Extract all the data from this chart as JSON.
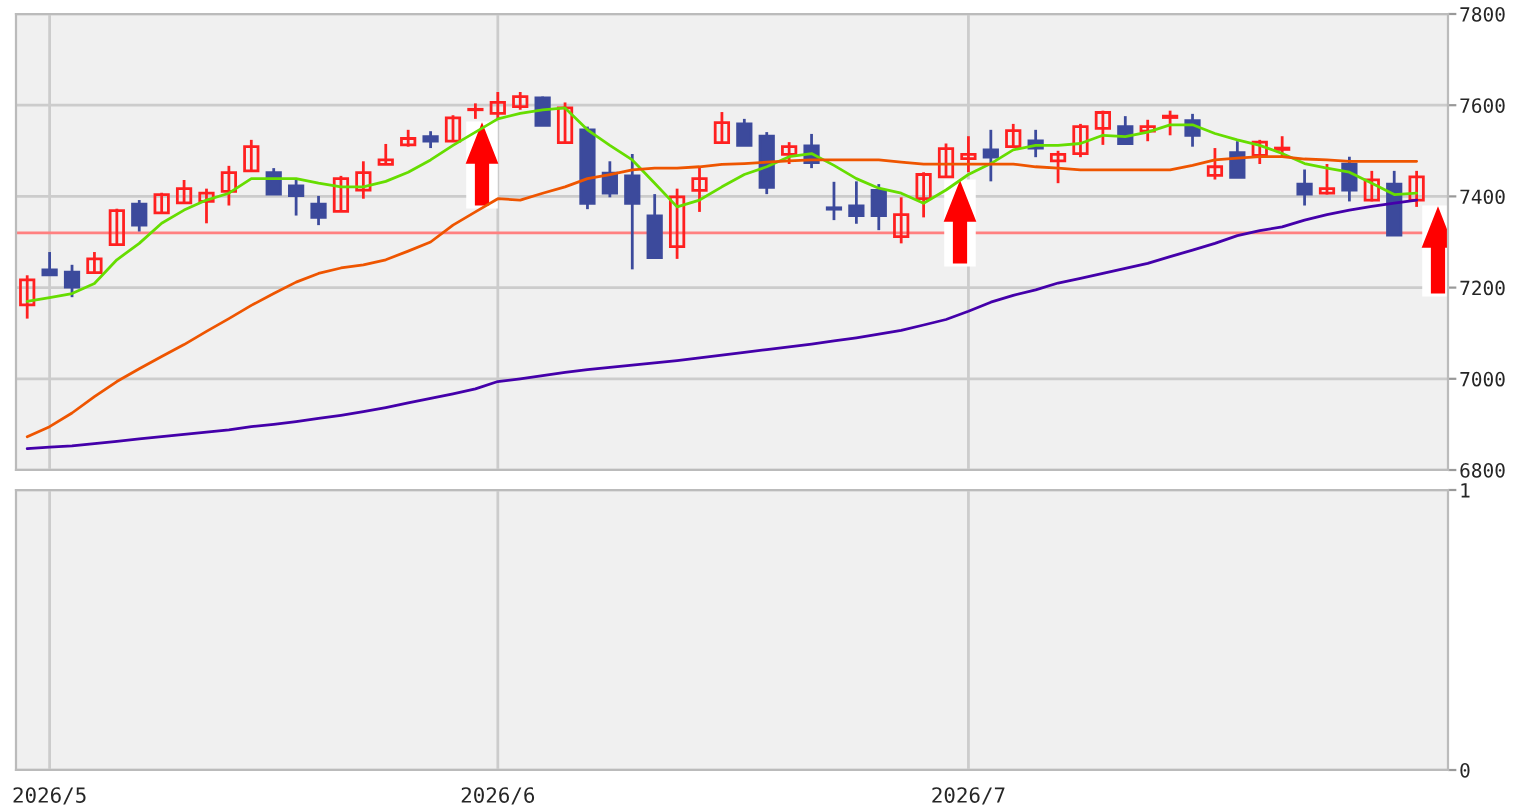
{
  "chart_data": [
    {
      "type": "candlestick",
      "categories": [
        null,
        "2026/5",
        null,
        null,
        null,
        null,
        null,
        null,
        null,
        null,
        null,
        null,
        null,
        null,
        null,
        null,
        null,
        null,
        null,
        null,
        null,
        "2026/6",
        null,
        null,
        null,
        null,
        null,
        null,
        null,
        null,
        null,
        null,
        null,
        null,
        null,
        null,
        null,
        null,
        null,
        null,
        null,
        null,
        "2026/7",
        null,
        null,
        null,
        null,
        null,
        null,
        null,
        null,
        null,
        null,
        null,
        null,
        null,
        null,
        null,
        null,
        null,
        null,
        null,
        null
      ],
      "ohlc": [
        [
          7162,
          7227,
          7132,
          7217
        ],
        [
          7239,
          7278,
          7228,
          7228
        ],
        [
          7234,
          7250,
          7179,
          7201
        ],
        [
          7233,
          7278,
          7233,
          7263
        ],
        [
          7294,
          7373,
          7294,
          7369
        ],
        [
          7383,
          7392,
          7323,
          7337
        ],
        [
          7364,
          7408,
          7364,
          7404
        ],
        [
          7386,
          7436,
          7386,
          7417
        ],
        [
          7389,
          7417,
          7341,
          7407
        ],
        [
          7411,
          7467,
          7380,
          7452
        ],
        [
          7456,
          7524,
          7456,
          7509
        ],
        [
          7452,
          7462,
          7405,
          7405
        ],
        [
          7423,
          7439,
          7358,
          7402
        ],
        [
          7383,
          7401,
          7337,
          7354
        ],
        [
          7367,
          7445,
          7367,
          7439
        ],
        [
          7414,
          7477,
          7395,
          7452
        ],
        [
          7470,
          7515,
          7470,
          7480
        ],
        [
          7513,
          7546,
          7509,
          7527
        ],
        [
          7531,
          7543,
          7506,
          7521
        ],
        [
          7521,
          7578,
          7521,
          7572
        ],
        [
          7590,
          7604,
          7570,
          7591
        ],
        [
          7582,
          7629,
          7570,
          7606
        ],
        [
          7597,
          7629,
          7590,
          7619
        ],
        [
          7616,
          7619,
          7556,
          7556
        ],
        [
          7518,
          7606,
          7518,
          7594
        ],
        [
          7546,
          7553,
          7372,
          7385
        ],
        [
          7451,
          7477,
          7398,
          7407
        ],
        [
          7445,
          7493,
          7240,
          7385
        ],
        [
          7357,
          7405,
          7266,
          7266
        ],
        [
          7290,
          7417,
          7263,
          7399
        ],
        [
          7413,
          7465,
          7366,
          7439
        ],
        [
          7518,
          7585,
          7518,
          7562
        ],
        [
          7559,
          7570,
          7512,
          7512
        ],
        [
          7532,
          7541,
          7405,
          7420
        ],
        [
          7492,
          7519,
          7471,
          7509
        ],
        [
          7511,
          7537,
          7462,
          7474
        ],
        [
          7375,
          7432,
          7348,
          7372
        ],
        [
          7379,
          7433,
          7340,
          7358
        ],
        [
          7413,
          7427,
          7326,
          7358
        ],
        [
          7312,
          7398,
          7297,
          7360
        ],
        [
          7395,
          7453,
          7354,
          7448
        ],
        [
          7443,
          7516,
          7443,
          7505
        ],
        [
          7483,
          7532,
          7453,
          7492
        ],
        [
          7502,
          7546,
          7433,
          7486
        ],
        [
          7509,
          7559,
          7509,
          7544
        ],
        [
          7522,
          7546,
          7486,
          7506
        ],
        [
          7478,
          7500,
          7429,
          7492
        ],
        [
          7494,
          7559,
          7486,
          7553
        ],
        [
          7549,
          7588,
          7513,
          7584
        ],
        [
          7553,
          7576,
          7516,
          7516
        ],
        [
          7543,
          7568,
          7521,
          7553
        ],
        [
          7573,
          7588,
          7534,
          7576
        ],
        [
          7566,
          7581,
          7509,
          7534
        ],
        [
          7446,
          7506,
          7437,
          7465
        ],
        [
          7496,
          7521,
          7442,
          7442
        ],
        [
          7490,
          7524,
          7471,
          7519
        ],
        [
          7503,
          7532,
          7486,
          7506
        ],
        [
          7427,
          7459,
          7380,
          7405
        ],
        [
          7407,
          7471,
          7404,
          7417
        ],
        [
          7471,
          7487,
          7389,
          7414
        ],
        [
          7392,
          7456,
          7389,
          7436
        ],
        [
          7427,
          7456,
          7315,
          7315
        ],
        [
          7392,
          7456,
          7377,
          7443
        ]
      ],
      "colors": [
        "#ff2020",
        "#3c4a9c",
        "#3c4a9c",
        "#ff2020",
        "#ff2020",
        "#3c4a9c",
        "#ff2020",
        "#ff2020",
        "#ff2020",
        "#ff2020",
        "#ff2020",
        "#3c4a9c",
        "#3c4a9c",
        "#3c4a9c",
        "#ff2020",
        "#ff2020",
        "#ff2020",
        "#ff2020",
        "#3c4a9c",
        "#ff2020",
        "#ff2020",
        "#ff2020",
        "#ff2020",
        "#3c4a9c",
        "#ff2020",
        "#3c4a9c",
        "#3c4a9c",
        "#3c4a9c",
        "#3c4a9c",
        "#ff2020",
        "#ff2020",
        "#ff2020",
        "#3c4a9c",
        "#3c4a9c",
        "#ff2020",
        "#3c4a9c",
        "#3c4a9c",
        "#3c4a9c",
        "#3c4a9c",
        "#ff2020",
        "#ff2020",
        "#ff2020",
        "#ff2020",
        "#3c4a9c",
        "#ff2020",
        "#3c4a9c",
        "#ff2020",
        "#ff2020",
        "#ff2020",
        "#3c4a9c",
        "#ff2020",
        "#ff2020",
        "#3c4a9c",
        "#ff2020",
        "#3c4a9c",
        "#ff2020",
        "#ff2020",
        "#3c4a9c",
        "#ff2020",
        "#3c4a9c",
        "#ff2020",
        "#3c4a9c",
        "#ff2020"
      ],
      "series": [
        {
          "type": "line",
          "color": "#66dd00",
          "values": [
            7170,
            7178,
            7187,
            7209,
            7261,
            7297,
            7341,
            7370,
            7392,
            7407,
            7439,
            7439,
            7439,
            7429,
            7421,
            7421,
            7433,
            7453,
            7480,
            7512,
            7541,
            7570,
            7582,
            7590,
            7594,
            7546,
            7512,
            7480,
            7429,
            7377,
            7392,
            7421,
            7448,
            7465,
            7487,
            7494,
            7468,
            7439,
            7418,
            7407,
            7385,
            7414,
            7448,
            7472,
            7502,
            7512,
            7512,
            7516,
            7534,
            7531,
            7541,
            7557,
            7557,
            7538,
            7524,
            7512,
            7494,
            7472,
            7462,
            7453,
            7429,
            7404,
            7407
          ]
        },
        {
          "type": "line",
          "color": "#ee5500",
          "values": [
            6873,
            6895,
            6925,
            6961,
            6994,
            7022,
            7049,
            7075,
            7104,
            7132,
            7161,
            7187,
            7212,
            7231,
            7243,
            7250,
            7261,
            7280,
            7300,
            7337,
            7366,
            7395,
            7392,
            7407,
            7421,
            7439,
            7448,
            7458,
            7462,
            7462,
            7465,
            7470,
            7472,
            7475,
            7478,
            7480,
            7480,
            7480,
            7480,
            7475,
            7471,
            7471,
            7471,
            7471,
            7471,
            7465,
            7462,
            7458,
            7458,
            7458,
            7458,
            7458,
            7468,
            7480,
            7484,
            7487,
            7487,
            7482,
            7480,
            7477,
            7477,
            7477,
            7477
          ]
        },
        {
          "type": "line",
          "color": "#4400aa",
          "values": [
            6847,
            6850,
            6853,
            6858,
            6863,
            6868,
            6873,
            6878,
            6883,
            6888,
            6895,
            6900,
            6906,
            6913,
            6920,
            6928,
            6937,
            6947,
            6957,
            6967,
            6978,
            6994,
            7000,
            7007,
            7014,
            7020,
            7025,
            7030,
            7035,
            7040,
            7046,
            7052,
            7058,
            7064,
            7070,
            7076,
            7083,
            7090,
            7098,
            7106,
            7118,
            7130,
            7148,
            7168,
            7183,
            7195,
            7210,
            7220,
            7231,
            7242,
            7253,
            7268,
            7282,
            7297,
            7314,
            7325,
            7333,
            7348,
            7360,
            7370,
            7378,
            7385,
            7392
          ]
        }
      ],
      "ref_lines": [
        {
          "axis": "y",
          "value": 7320,
          "color": "#ff8080"
        }
      ],
      "ylim": [
        6800,
        7800
      ],
      "yticks": [
        6800,
        7000,
        7200,
        7400,
        7600,
        7800
      ],
      "grid": true,
      "tick_labels": "y"
    },
    {
      "type": "line",
      "categories": [
        null,
        "2026/5",
        null,
        null,
        null,
        null,
        null,
        null,
        null,
        null,
        null,
        null,
        null,
        null,
        null,
        null,
        null,
        null,
        null,
        null,
        null,
        "2026/6",
        null,
        null,
        null,
        null,
        null,
        null,
        null,
        null,
        null,
        null,
        null,
        null,
        null,
        null,
        null,
        null,
        null,
        null,
        null,
        null,
        "2026/7",
        null,
        null,
        null,
        null,
        null,
        null,
        null,
        null,
        null,
        null,
        null,
        null,
        null,
        null,
        null,
        null,
        null,
        null,
        null,
        null
      ],
      "ylim": [
        0,
        1
      ],
      "yticks": [
        0,
        1
      ],
      "grid": true
    }
  ]
}
